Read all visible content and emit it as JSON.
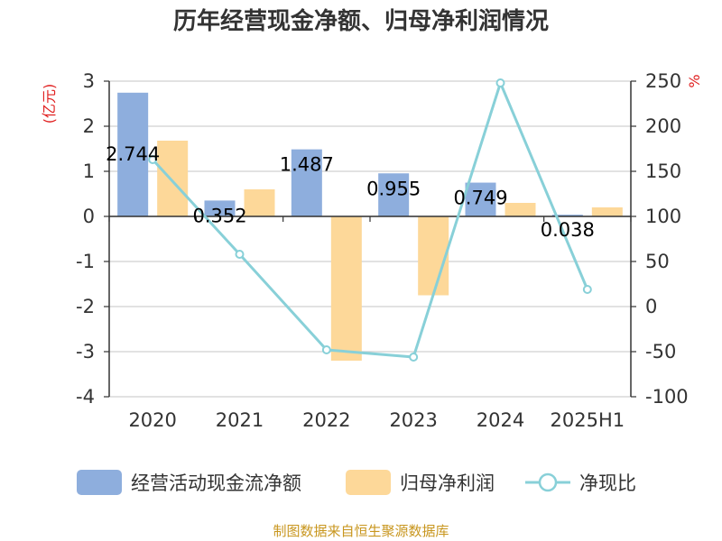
{
  "chart_data": {
    "type": "bar",
    "title": "历年经营现金净额、归母净利润情况",
    "categories": [
      "2020",
      "2021",
      "2022",
      "2023",
      "2024",
      "2025H1"
    ],
    "y_left": {
      "unit": "(亿元)",
      "ylim": [
        -4,
        3
      ],
      "ticks": [
        3,
        2,
        1,
        0,
        -1,
        -2,
        -3,
        -4
      ]
    },
    "y_right": {
      "unit": "%",
      "ylim": [
        -100,
        250
      ],
      "ticks": [
        250,
        200,
        150,
        100,
        50,
        0,
        -50,
        -100
      ]
    },
    "series": [
      {
        "name": "经营活动现金流净额",
        "type": "bar",
        "axis": "left",
        "color": "#8eaedd",
        "values": [
          2.744,
          0.352,
          1.487,
          0.955,
          0.749,
          0.038
        ],
        "labels": [
          "2.744",
          "0.352",
          "1.487",
          "0.955",
          "0.749",
          "0.038"
        ]
      },
      {
        "name": "归母净利润",
        "type": "bar",
        "axis": "left",
        "color": "#fdd899",
        "values": [
          1.68,
          0.6,
          -3.2,
          -1.75,
          0.3,
          0.2
        ]
      },
      {
        "name": "净现比",
        "type": "line",
        "axis": "right",
        "color": "#88d0d8",
        "values": [
          163,
          58,
          -48,
          -56,
          248,
          19
        ]
      }
    ],
    "legend_position": "bottom",
    "grid": true
  },
  "source": "制图数据来自恒生聚源数据库"
}
